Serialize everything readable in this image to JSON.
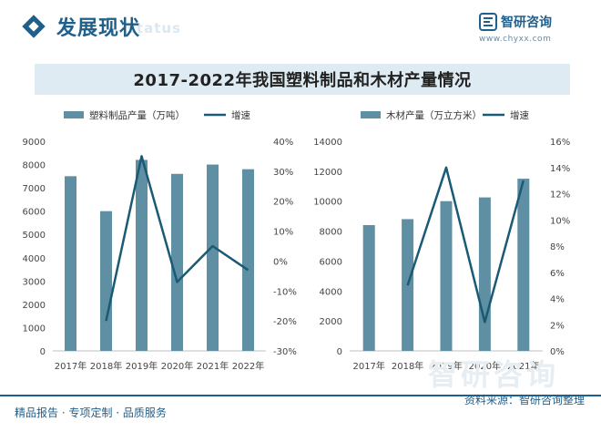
{
  "header": {
    "title": "发展现状",
    "ghost_text": "status",
    "logo_name": "智研咨询",
    "logo_url": "www.chyxx.com"
  },
  "chart_title": "2017-2022年我国塑料制品和木材产量情况",
  "watermark": "智研咨询",
  "footer": {
    "left": "精品报告 · 专项定制 · 品质服务",
    "right": "资料来源：智研咨询整理"
  },
  "colors": {
    "bar": "#5e8fa3",
    "line": "#1b5a74",
    "brand": "#1f5f8b",
    "band": "#deebf3"
  },
  "chart_data": [
    {
      "type": "bar",
      "title": "",
      "categories": [
        "2017年",
        "2018年",
        "2019年",
        "2020年",
        "2021年",
        "2022年"
      ],
      "series": [
        {
          "name": "塑料制品产量（万吨）",
          "type": "bar",
          "axis": "left",
          "values": [
            7500,
            6000,
            8200,
            7600,
            8000,
            7800
          ]
        },
        {
          "name": "增速",
          "type": "line",
          "axis": "right",
          "values": [
            null,
            -20,
            35,
            -7,
            5,
            -3
          ]
        }
      ],
      "y_left": {
        "min": 0,
        "max": 9000,
        "step": 1000,
        "ticks": [
          "0",
          "1000",
          "2000",
          "3000",
          "4000",
          "5000",
          "6000",
          "7000",
          "8000",
          "9000"
        ]
      },
      "y_right": {
        "min": -30,
        "max": 40,
        "step": 10,
        "ticks": [
          "-30%",
          "-20%",
          "-10%",
          "0%",
          "10%",
          "20%",
          "30%",
          "40%"
        ]
      },
      "legend_position": "top"
    },
    {
      "type": "bar",
      "title": "",
      "categories": [
        "2017年",
        "2018年",
        "2019年",
        "2020年",
        "2021年"
      ],
      "series": [
        {
          "name": "木材产量（万立方米）",
          "type": "bar",
          "axis": "left",
          "values": [
            8400,
            8800,
            10000,
            10250,
            11500
          ]
        },
        {
          "name": "增速",
          "type": "line",
          "axis": "right",
          "values": [
            null,
            5,
            14,
            2.2,
            13
          ]
        }
      ],
      "y_left": {
        "min": 0,
        "max": 14000,
        "step": 2000,
        "ticks": [
          "0",
          "2000",
          "4000",
          "6000",
          "8000",
          "10000",
          "12000",
          "14000"
        ]
      },
      "y_right": {
        "min": 0,
        "max": 16,
        "step": 2,
        "ticks": [
          "0%",
          "2%",
          "4%",
          "6%",
          "8%",
          "10%",
          "12%",
          "14%",
          "16%"
        ]
      },
      "legend_position": "top"
    }
  ]
}
